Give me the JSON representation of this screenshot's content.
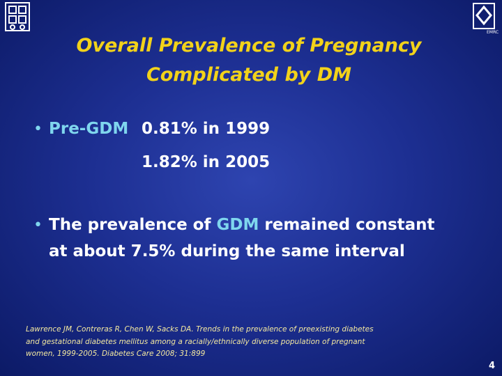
{
  "title": [
    "Overall Prevalence of Pregnancy",
    "Complicated by DM"
  ],
  "bullets": [
    {
      "label": "Pre-GDM",
      "lines": [
        "0.81% in 1999",
        "1.82% in 2005"
      ]
    },
    {
      "text_before": "The prevalence of",
      "highlight": "GDM",
      "text_after": "remained constant",
      "line2": "at about 7.5% during the same interval"
    }
  ],
  "reference": [
    "Lawrence  JM, Contreras  R, Chen  W, Sacks  DA. Trends in the prevalence of preexisting diabetes",
    "and  gestational  diabetes  mellitus  among  a  racially/ethnically  diverse  population  of  pregnant",
    "women, 1999-2005. Diabetes Care 2008; 31:899"
  ],
  "logo_text": "EMRC",
  "page_number": "4"
}
